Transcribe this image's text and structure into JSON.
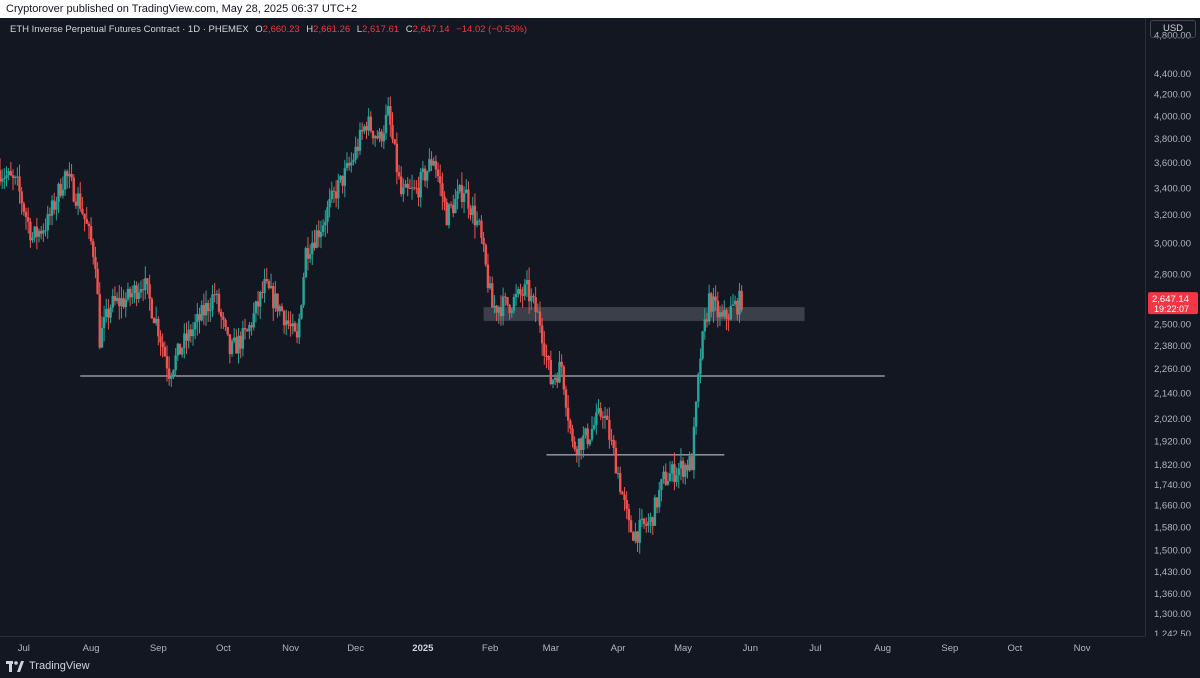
{
  "header": {
    "published_text": "Cryptorover published on TradingView.com, May 28, 2025 06:37 UTC+2"
  },
  "legend": {
    "symbol": "ETH Inverse Perpetual Futures Contract · 1D · PHEMEX",
    "open_label": "O",
    "open": "2,660.23",
    "high_label": "H",
    "high": "2,661.26",
    "low_label": "L",
    "low": "2,617.61",
    "close_label": "C",
    "close": "2,647.14",
    "change": "−14.02 (−0.53%)"
  },
  "currency": "USD",
  "last_price": {
    "value": "2,647.14",
    "countdown": "19:22:07"
  },
  "footer": {
    "brand": "TradingView"
  },
  "colors": {
    "up": "#26a69a",
    "down": "#ef5350",
    "background": "#131722",
    "price_tag": "#f23645",
    "zone": "#5d606b"
  },
  "chart_data": {
    "type": "candlestick",
    "y_scale": "log",
    "ylim": [
      1242.5,
      4950
    ],
    "y_ticks": [
      "4,800.00",
      "4,400.00",
      "4,200.00",
      "4,000.00",
      "3,800.00",
      "3,600.00",
      "3,400.00",
      "3,200.00",
      "3,000.00",
      "2,800.00",
      "2,620.00",
      "2,500.00",
      "2,380.00",
      "2,260.00",
      "2,140.00",
      "2,020.00",
      "1,920.00",
      "1,820.00",
      "1,740.00",
      "1,660.00",
      "1,580.00",
      "1,500.00",
      "1,430.00",
      "1,360.00",
      "1,300.00",
      "1,242.50"
    ],
    "x_ticks": [
      "Jul",
      "Aug",
      "Sep",
      "Oct",
      "Nov",
      "Dec",
      "2025",
      "Feb",
      "Mar",
      "Apr",
      "May",
      "Jun",
      "Jul",
      "Aug",
      "Sep",
      "Oct",
      "Nov"
    ],
    "x_range": [
      "2024-06-20",
      "2025-11-30"
    ],
    "series_close": [
      [
        "2024-06-20",
        3540
      ],
      [
        "2024-06-28",
        3420
      ],
      [
        "2024-07-05",
        3040
      ],
      [
        "2024-07-12",
        3150
      ],
      [
        "2024-07-20",
        3510
      ],
      [
        "2024-07-27",
        3290
      ],
      [
        "2024-08-03",
        2900
      ],
      [
        "2024-08-05",
        2420
      ],
      [
        "2024-08-10",
        2610
      ],
      [
        "2024-08-18",
        2650
      ],
      [
        "2024-08-25",
        2760
      ],
      [
        "2024-09-01",
        2480
      ],
      [
        "2024-09-06",
        2250
      ],
      [
        "2024-09-12",
        2380
      ],
      [
        "2024-09-20",
        2530
      ],
      [
        "2024-09-27",
        2680
      ],
      [
        "2024-10-04",
        2350
      ],
      [
        "2024-10-12",
        2450
      ],
      [
        "2024-10-20",
        2720
      ],
      [
        "2024-10-28",
        2580
      ],
      [
        "2024-11-04",
        2400
      ],
      [
        "2024-11-08",
        2950
      ],
      [
        "2024-11-15",
        3120
      ],
      [
        "2024-11-22",
        3380
      ],
      [
        "2024-11-29",
        3600
      ],
      [
        "2024-12-06",
        3950
      ],
      [
        "2024-12-12",
        3800
      ],
      [
        "2024-12-16",
        4020
      ],
      [
        "2024-12-22",
        3350
      ],
      [
        "2024-12-29",
        3380
      ],
      [
        "2025-01-06",
        3650
      ],
      [
        "2025-01-12",
        3200
      ],
      [
        "2025-01-20",
        3400
      ],
      [
        "2025-01-27",
        3100
      ],
      [
        "2025-02-02",
        2600
      ],
      [
        "2025-02-10",
        2620
      ],
      [
        "2025-02-18",
        2700
      ],
      [
        "2025-02-24",
        2520
      ],
      [
        "2025-03-01",
        2200
      ],
      [
        "2025-03-06",
        2280
      ],
      [
        "2025-03-11",
        1900
      ],
      [
        "2025-03-18",
        1940
      ],
      [
        "2025-03-25",
        2060
      ],
      [
        "2025-03-31",
        1830
      ],
      [
        "2025-04-06",
        1580
      ],
      [
        "2025-04-09",
        1560
      ],
      [
        "2025-04-16",
        1600
      ],
      [
        "2025-04-22",
        1760
      ],
      [
        "2025-04-28",
        1800
      ],
      [
        "2025-05-05",
        1830
      ],
      [
        "2025-05-09",
        2330
      ],
      [
        "2025-05-13",
        2650
      ],
      [
        "2025-05-19",
        2520
      ],
      [
        "2025-05-23",
        2580
      ],
      [
        "2025-05-28",
        2647.14
      ]
    ],
    "horizontal_levels": [
      {
        "price": 2225,
        "from": "2024-07-27",
        "to": "2025-08-02"
      },
      {
        "price": 1862,
        "from": "2025-02-27",
        "to": "2025-05-20"
      }
    ],
    "zone": {
      "from": "2025-01-29",
      "to": "2025-06-26",
      "low": 2520,
      "high": 2600
    }
  }
}
